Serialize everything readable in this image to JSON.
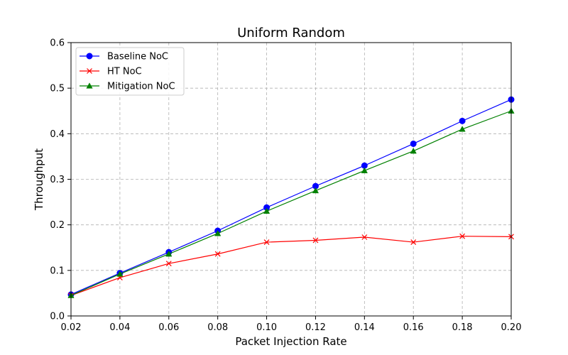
{
  "chart_data": {
    "type": "line",
    "title": "Uniform Random",
    "xlabel": "Packet Injection Rate",
    "ylabel": "Throughput",
    "x": [
      0.02,
      0.04,
      0.06,
      0.08,
      0.1,
      0.12,
      0.14,
      0.16,
      0.18,
      0.2
    ],
    "xlim": [
      0.02,
      0.2
    ],
    "ylim": [
      0.0,
      0.6
    ],
    "xticks": [
      "0.02",
      "0.04",
      "0.06",
      "0.08",
      "0.10",
      "0.12",
      "0.14",
      "0.16",
      "0.18",
      "0.20"
    ],
    "yticks": [
      "0.0",
      "0.1",
      "0.2",
      "0.3",
      "0.4",
      "0.5",
      "0.6"
    ],
    "grid": true,
    "legend_position": "top-left",
    "series": [
      {
        "name": "Baseline NoC",
        "color": "#0000ff",
        "marker": "circle",
        "values": [
          0.047,
          0.094,
          0.14,
          0.187,
          0.238,
          0.285,
          0.33,
          0.378,
          0.428,
          0.475
        ]
      },
      {
        "name": "HT NoC",
        "color": "#ff0000",
        "marker": "x",
        "values": [
          0.045,
          0.084,
          0.115,
          0.136,
          0.162,
          0.166,
          0.173,
          0.162,
          0.175,
          0.174
        ]
      },
      {
        "name": "Mitigation NoC",
        "color": "#008000",
        "marker": "triangle",
        "values": [
          0.045,
          0.092,
          0.136,
          0.181,
          0.23,
          0.275,
          0.319,
          0.362,
          0.41,
          0.45
        ]
      }
    ]
  }
}
